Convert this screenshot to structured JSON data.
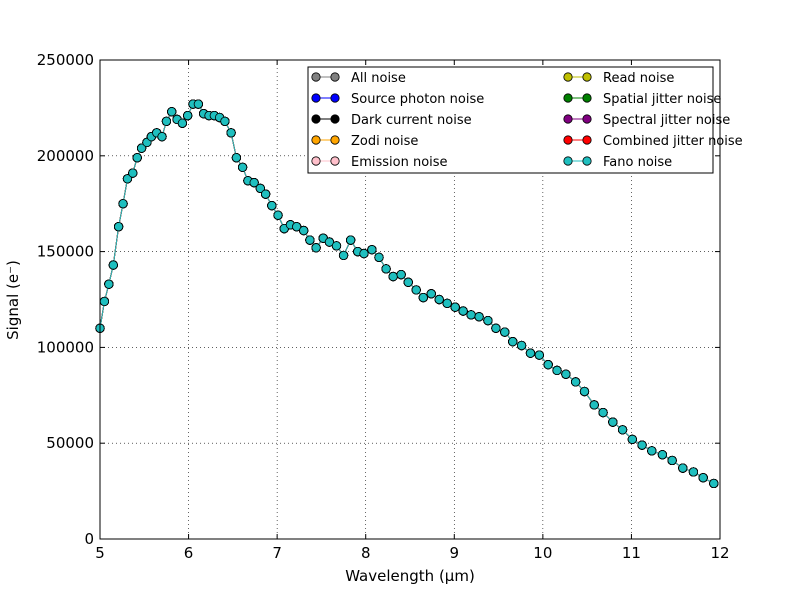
{
  "chart_data": {
    "type": "line",
    "xlabel": "Wavelength (μm)",
    "ylabel": "Signal (e⁻)",
    "xlim": [
      5,
      12
    ],
    "ylim": [
      0,
      250000
    ],
    "x_ticks": [
      "5",
      "6",
      "7",
      "8",
      "9",
      "10",
      "11",
      "12"
    ],
    "y_ticks": [
      "0",
      "50000",
      "100000",
      "150000",
      "200000",
      "250000"
    ],
    "grid": true,
    "legend_position": "top-right",
    "x": [
      5.0,
      5.05,
      5.1,
      5.15,
      5.21,
      5.26,
      5.31,
      5.37,
      5.42,
      5.47,
      5.53,
      5.58,
      5.64,
      5.7,
      5.75,
      5.81,
      5.87,
      5.93,
      5.99,
      6.05,
      6.11,
      6.17,
      6.23,
      6.29,
      6.35,
      6.41,
      6.48,
      6.54,
      6.61,
      6.67,
      6.74,
      6.81,
      6.87,
      6.94,
      7.01,
      7.08,
      7.15,
      7.22,
      7.3,
      7.37,
      7.44,
      7.52,
      7.59,
      7.67,
      7.75,
      7.83,
      7.91,
      7.98,
      8.07,
      8.15,
      8.23,
      8.31,
      8.4,
      8.48,
      8.57,
      8.65,
      8.74,
      8.83,
      8.92,
      9.01,
      9.1,
      9.19,
      9.28,
      9.38,
      9.47,
      9.57,
      9.66,
      9.76,
      9.86,
      9.96,
      10.06,
      10.16,
      10.26,
      10.37,
      10.47,
      10.58,
      10.68,
      10.79,
      10.9,
      11.01,
      11.12,
      11.23,
      11.35,
      11.46,
      11.58,
      11.7,
      11.81,
      11.93
    ],
    "series": [
      {
        "name": "All noise",
        "color": "#808080",
        "values": [
          110000,
          124000,
          133000,
          143000,
          163000,
          175000,
          188000,
          191000,
          199000,
          204000,
          207000,
          210000,
          212000,
          210000,
          218000,
          223000,
          219000,
          217000,
          221000,
          227000,
          227000,
          222000,
          221000,
          221000,
          220000,
          218000,
          212000,
          199000,
          194000,
          187000,
          186000,
          183000,
          180000,
          174000,
          169000,
          162000,
          164000,
          163000,
          161000,
          156000,
          152000,
          157000,
          155000,
          153000,
          148000,
          156000,
          150000,
          149000,
          151000,
          147000,
          141000,
          137000,
          138000,
          134000,
          130000,
          126000,
          128000,
          125000,
          123000,
          121000,
          119000,
          117000,
          116000,
          114000,
          110000,
          108000,
          103000,
          101000,
          97000,
          96000,
          91000,
          88000,
          86000,
          82000,
          77000,
          70000,
          66000,
          61000,
          57000,
          52000,
          49000,
          46000,
          44000,
          41000,
          37000,
          35000,
          32000,
          29000
        ]
      },
      {
        "name": "Source photon noise",
        "color": "#0000ff",
        "values": [
          110000,
          124000,
          133000,
          143000,
          163000,
          175000,
          188000,
          191000,
          199000,
          204000,
          207000,
          210000,
          212000,
          210000,
          218000,
          223000,
          219000,
          217000,
          221000,
          227000,
          227000,
          222000,
          221000,
          221000,
          220000,
          218000,
          212000,
          199000,
          194000,
          187000,
          186000,
          183000,
          180000,
          174000,
          169000,
          162000,
          164000,
          163000,
          161000,
          156000,
          152000,
          157000,
          155000,
          153000,
          148000,
          156000,
          150000,
          149000,
          151000,
          147000,
          141000,
          137000,
          138000,
          134000,
          130000,
          126000,
          128000,
          125000,
          123000,
          121000,
          119000,
          117000,
          116000,
          114000,
          110000,
          108000,
          103000,
          101000,
          97000,
          96000,
          91000,
          88000,
          86000,
          82000,
          77000,
          70000,
          66000,
          61000,
          57000,
          52000,
          49000,
          46000,
          44000,
          41000,
          37000,
          35000,
          32000,
          29000
        ]
      },
      {
        "name": "Dark current noise",
        "color": "#000000",
        "values": [
          110000,
          124000,
          133000,
          143000,
          163000,
          175000,
          188000,
          191000,
          199000,
          204000,
          207000,
          210000,
          212000,
          210000,
          218000,
          223000,
          219000,
          217000,
          221000,
          227000,
          227000,
          222000,
          221000,
          221000,
          220000,
          218000,
          212000,
          199000,
          194000,
          187000,
          186000,
          183000,
          180000,
          174000,
          169000,
          162000,
          164000,
          163000,
          161000,
          156000,
          152000,
          157000,
          155000,
          153000,
          148000,
          156000,
          150000,
          149000,
          151000,
          147000,
          141000,
          137000,
          138000,
          134000,
          130000,
          126000,
          128000,
          125000,
          123000,
          121000,
          119000,
          117000,
          116000,
          114000,
          110000,
          108000,
          103000,
          101000,
          97000,
          96000,
          91000,
          88000,
          86000,
          82000,
          77000,
          70000,
          66000,
          61000,
          57000,
          52000,
          49000,
          46000,
          44000,
          41000,
          37000,
          35000,
          32000,
          29000
        ]
      },
      {
        "name": "Zodi noise",
        "color": "#ffa500",
        "values": [
          110000,
          124000,
          133000,
          143000,
          163000,
          175000,
          188000,
          191000,
          199000,
          204000,
          207000,
          210000,
          212000,
          210000,
          218000,
          223000,
          219000,
          217000,
          221000,
          227000,
          227000,
          222000,
          221000,
          221000,
          220000,
          218000,
          212000,
          199000,
          194000,
          187000,
          186000,
          183000,
          180000,
          174000,
          169000,
          162000,
          164000,
          163000,
          161000,
          156000,
          152000,
          157000,
          155000,
          153000,
          148000,
          156000,
          150000,
          149000,
          151000,
          147000,
          141000,
          137000,
          138000,
          134000,
          130000,
          126000,
          128000,
          125000,
          123000,
          121000,
          119000,
          117000,
          116000,
          114000,
          110000,
          108000,
          103000,
          101000,
          97000,
          96000,
          91000,
          88000,
          86000,
          82000,
          77000,
          70000,
          66000,
          61000,
          57000,
          52000,
          49000,
          46000,
          44000,
          41000,
          37000,
          35000,
          32000,
          29000
        ]
      },
      {
        "name": "Emission noise",
        "color": "#ffc0cb",
        "values": [
          110000,
          124000,
          133000,
          143000,
          163000,
          175000,
          188000,
          191000,
          199000,
          204000,
          207000,
          210000,
          212000,
          210000,
          218000,
          223000,
          219000,
          217000,
          221000,
          227000,
          227000,
          222000,
          221000,
          221000,
          220000,
          218000,
          212000,
          199000,
          194000,
          187000,
          186000,
          183000,
          180000,
          174000,
          169000,
          162000,
          164000,
          163000,
          161000,
          156000,
          152000,
          157000,
          155000,
          153000,
          148000,
          156000,
          150000,
          149000,
          151000,
          147000,
          141000,
          137000,
          138000,
          134000,
          130000,
          126000,
          128000,
          125000,
          123000,
          121000,
          119000,
          117000,
          116000,
          114000,
          110000,
          108000,
          103000,
          101000,
          97000,
          96000,
          91000,
          88000,
          86000,
          82000,
          77000,
          70000,
          66000,
          61000,
          57000,
          52000,
          49000,
          46000,
          44000,
          41000,
          37000,
          35000,
          32000,
          29000
        ]
      },
      {
        "name": "Read noise",
        "color": "#bfbf00",
        "values": [
          110000,
          124000,
          133000,
          143000,
          163000,
          175000,
          188000,
          191000,
          199000,
          204000,
          207000,
          210000,
          212000,
          210000,
          218000,
          223000,
          219000,
          217000,
          221000,
          227000,
          227000,
          222000,
          221000,
          221000,
          220000,
          218000,
          212000,
          199000,
          194000,
          187000,
          186000,
          183000,
          180000,
          174000,
          169000,
          162000,
          164000,
          163000,
          161000,
          156000,
          152000,
          157000,
          155000,
          153000,
          148000,
          156000,
          150000,
          149000,
          151000,
          147000,
          141000,
          137000,
          138000,
          134000,
          130000,
          126000,
          128000,
          125000,
          123000,
          121000,
          119000,
          117000,
          116000,
          114000,
          110000,
          108000,
          103000,
          101000,
          97000,
          96000,
          91000,
          88000,
          86000,
          82000,
          77000,
          70000,
          66000,
          61000,
          57000,
          52000,
          49000,
          46000,
          44000,
          41000,
          37000,
          35000,
          32000,
          29000
        ]
      },
      {
        "name": "Spatial jitter noise",
        "color": "#008000",
        "values": [
          110000,
          124000,
          133000,
          143000,
          163000,
          175000,
          188000,
          191000,
          199000,
          204000,
          207000,
          210000,
          212000,
          210000,
          218000,
          223000,
          219000,
          217000,
          221000,
          227000,
          227000,
          222000,
          221000,
          221000,
          220000,
          218000,
          212000,
          199000,
          194000,
          187000,
          186000,
          183000,
          180000,
          174000,
          169000,
          162000,
          164000,
          163000,
          161000,
          156000,
          152000,
          157000,
          155000,
          153000,
          148000,
          156000,
          150000,
          149000,
          151000,
          147000,
          141000,
          137000,
          138000,
          134000,
          130000,
          126000,
          128000,
          125000,
          123000,
          121000,
          119000,
          117000,
          116000,
          114000,
          110000,
          108000,
          103000,
          101000,
          97000,
          96000,
          91000,
          88000,
          86000,
          82000,
          77000,
          70000,
          66000,
          61000,
          57000,
          52000,
          49000,
          46000,
          44000,
          41000,
          37000,
          35000,
          32000,
          29000
        ]
      },
      {
        "name": "Spectral jitter noise",
        "color": "#800080",
        "values": [
          110000,
          124000,
          133000,
          143000,
          163000,
          175000,
          188000,
          191000,
          199000,
          204000,
          207000,
          210000,
          212000,
          210000,
          218000,
          223000,
          219000,
          217000,
          221000,
          227000,
          227000,
          222000,
          221000,
          221000,
          220000,
          218000,
          212000,
          199000,
          194000,
          187000,
          186000,
          183000,
          180000,
          174000,
          169000,
          162000,
          164000,
          163000,
          161000,
          156000,
          152000,
          157000,
          155000,
          153000,
          148000,
          156000,
          150000,
          149000,
          151000,
          147000,
          141000,
          137000,
          138000,
          134000,
          130000,
          126000,
          128000,
          125000,
          123000,
          121000,
          119000,
          117000,
          116000,
          114000,
          110000,
          108000,
          103000,
          101000,
          97000,
          96000,
          91000,
          88000,
          86000,
          82000,
          77000,
          70000,
          66000,
          61000,
          57000,
          52000,
          49000,
          46000,
          44000,
          41000,
          37000,
          35000,
          32000,
          29000
        ]
      },
      {
        "name": "Combined jitter noise",
        "color": "#ff0000",
        "values": [
          110000,
          124000,
          133000,
          143000,
          163000,
          175000,
          188000,
          191000,
          199000,
          204000,
          207000,
          210000,
          212000,
          210000,
          218000,
          223000,
          219000,
          217000,
          221000,
          227000,
          227000,
          222000,
          221000,
          221000,
          220000,
          218000,
          212000,
          199000,
          194000,
          187000,
          186000,
          183000,
          180000,
          174000,
          169000,
          162000,
          164000,
          163000,
          161000,
          156000,
          152000,
          157000,
          155000,
          153000,
          148000,
          156000,
          150000,
          149000,
          151000,
          147000,
          141000,
          137000,
          138000,
          134000,
          130000,
          126000,
          128000,
          125000,
          123000,
          121000,
          119000,
          117000,
          116000,
          114000,
          110000,
          108000,
          103000,
          101000,
          97000,
          96000,
          91000,
          88000,
          86000,
          82000,
          77000,
          70000,
          66000,
          61000,
          57000,
          52000,
          49000,
          46000,
          44000,
          41000,
          37000,
          35000,
          32000,
          29000
        ]
      },
      {
        "name": "Fano noise",
        "color": "#1fbfbf",
        "values": [
          110000,
          124000,
          133000,
          143000,
          163000,
          175000,
          188000,
          191000,
          199000,
          204000,
          207000,
          210000,
          212000,
          210000,
          218000,
          223000,
          219000,
          217000,
          221000,
          227000,
          227000,
          222000,
          221000,
          221000,
          220000,
          218000,
          212000,
          199000,
          194000,
          187000,
          186000,
          183000,
          180000,
          174000,
          169000,
          162000,
          164000,
          163000,
          161000,
          156000,
          152000,
          157000,
          155000,
          153000,
          148000,
          156000,
          150000,
          149000,
          151000,
          147000,
          141000,
          137000,
          138000,
          134000,
          130000,
          126000,
          128000,
          125000,
          123000,
          121000,
          119000,
          117000,
          116000,
          114000,
          110000,
          108000,
          103000,
          101000,
          97000,
          96000,
          91000,
          88000,
          86000,
          82000,
          77000,
          70000,
          66000,
          61000,
          57000,
          52000,
          49000,
          46000,
          44000,
          41000,
          37000,
          35000,
          32000,
          29000
        ]
      }
    ]
  }
}
